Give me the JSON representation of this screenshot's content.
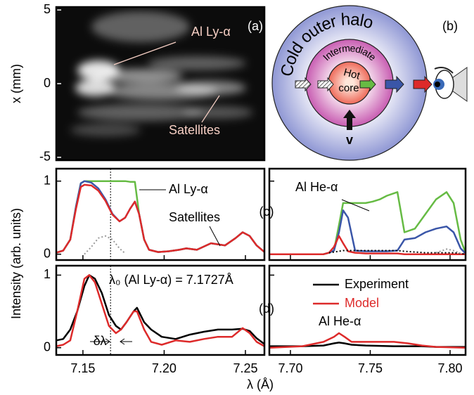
{
  "figure": {
    "xlabel": "λ (Å)",
    "ylabel": "Intensity (arb. units)"
  },
  "diagram": {
    "label": "(b)",
    "halo": "Cold outer halo",
    "intermediate": "Intermediate",
    "hot": "Hot",
    "core": "core",
    "velocity": "v"
  },
  "chart_data": [
    {
      "type": "image",
      "ylabel": "x (mm)",
      "ylim": [
        -5.2,
        5.2
      ],
      "yticks": [
        5,
        0,
        -5
      ],
      "annotations": [
        "Al Ly-α",
        "Satellites",
        "(a)"
      ]
    },
    {
      "type": "line",
      "xlim": [
        7.1336,
        7.2617
      ],
      "ylim": [
        -0.08,
        1.17
      ],
      "xticks": [
        7.15,
        7.2,
        7.25
      ],
      "xtick_labels": false,
      "yticks": [
        0,
        1
      ],
      "reference_line": 7.167,
      "x": [
        7.1336,
        7.1379,
        7.1422,
        7.1457,
        7.1487,
        7.1509,
        7.1552,
        7.1595,
        7.1639,
        7.1682,
        7.1725,
        7.176,
        7.179,
        7.182,
        7.1846,
        7.1877,
        7.1907,
        7.1963,
        7.2028,
        7.2093,
        7.2136,
        7.2201,
        7.2288,
        7.2374,
        7.2439,
        7.2483,
        7.2526,
        7.2569,
        7.2617
      ],
      "series": [
        {
          "color": "#66bb44",
          "values": [
            0.02,
            0.05,
            0.2,
            0.65,
            0.97,
            1.0,
            1.0,
            1.0,
            1.0,
            1.0,
            1.0,
            1.0,
            0.99,
            0.99,
            0.55,
            0.2,
            0.06,
            0.03,
            0.04,
            0.06,
            0.08,
            0.06,
            0.15,
            0.12,
            0.22,
            0.3,
            0.25,
            0.12,
            0.03
          ]
        },
        {
          "color": "#3a56a8",
          "values": [
            0.02,
            0.05,
            0.2,
            0.65,
            0.97,
            1.0,
            0.98,
            0.9,
            0.75,
            0.55,
            0.45,
            0.5,
            0.62,
            0.72,
            0.55,
            0.2,
            0.06,
            0.03,
            0.04,
            0.06,
            0.08,
            0.06,
            0.15,
            0.12,
            0.22,
            0.3,
            0.25,
            0.12,
            0.03
          ]
        },
        {
          "color": "#dd2a2a",
          "values": [
            0.02,
            0.05,
            0.2,
            0.62,
            0.92,
            0.95,
            0.94,
            0.87,
            0.73,
            0.54,
            0.45,
            0.5,
            0.62,
            0.72,
            0.55,
            0.2,
            0.06,
            0.03,
            0.04,
            0.06,
            0.08,
            0.06,
            0.15,
            0.12,
            0.22,
            0.3,
            0.25,
            0.12,
            0.03
          ]
        },
        {
          "color": "#999999",
          "dash": true,
          "values": [
            null,
            null,
            null,
            null,
            null,
            0,
            0.1,
            0.22,
            0.25,
            0.2,
            0.08,
            0.01,
            null,
            null,
            null,
            null,
            null,
            null,
            null,
            null,
            null,
            null,
            null,
            null,
            null,
            null,
            null,
            null,
            null
          ]
        }
      ],
      "annotations": [
        "Al Ly-α",
        "Satellites",
        "(c)"
      ]
    },
    {
      "type": "line",
      "xlim": [
        7.6868,
        7.8097
      ],
      "ylim": [
        -0.08,
        1.17
      ],
      "xticks": [
        7.7,
        7.75,
        7.8
      ],
      "xtick_labels": false,
      "yticks": [
        0,
        1
      ],
      "ytick_labels": false,
      "x": [
        7.6868,
        7.7075,
        7.7207,
        7.7242,
        7.7273,
        7.7304,
        7.733,
        7.7361,
        7.7405,
        7.7471,
        7.7515,
        7.7559,
        7.7604,
        7.767,
        7.7714,
        7.778,
        7.7846,
        7.7912,
        7.7978,
        7.8022,
        7.8066,
        7.8097
      ],
      "series": [
        {
          "color": "#66bb44",
          "values": [
            0,
            0,
            0,
            0.02,
            0.05,
            0.4,
            0.7,
            0.7,
            0.7,
            0.7,
            0.72,
            0.75,
            0.8,
            0.85,
            0.3,
            0.35,
            0.55,
            0.75,
            0.85,
            0.7,
            0.2,
            0.02
          ]
        },
        {
          "color": "#3a56a8",
          "values": [
            0,
            0,
            0,
            0.02,
            0.05,
            0.3,
            0.6,
            0.5,
            0.05,
            0.04,
            0.04,
            0.04,
            0.04,
            0.05,
            0.2,
            0.22,
            0.3,
            0.35,
            0.38,
            0.3,
            0.08,
            0.01
          ]
        },
        {
          "color": "#dd2a2a",
          "values": [
            0,
            0,
            0,
            0.02,
            0.1,
            0.25,
            0.15,
            0.04,
            0.02,
            0.01,
            0.01,
            0.01,
            0.01,
            0.01,
            0,
            0,
            0,
            0,
            0,
            0,
            0,
            0
          ]
        },
        {
          "color": "#000000",
          "dash": true,
          "values": [
            null,
            null,
            null,
            0.02,
            0.03,
            0.04,
            0.05,
            0.05,
            0.05,
            0.05,
            0.05,
            0.05,
            0.05,
            0.05,
            0.04,
            0.03,
            0.02,
            0.02,
            0.02,
            0.02,
            0.01,
            0
          ]
        },
        {
          "color": "#999999",
          "dash": true,
          "values": [
            null,
            null,
            null,
            null,
            null,
            null,
            null,
            null,
            null,
            null,
            null,
            null,
            null,
            null,
            null,
            null,
            null,
            0.02,
            0.07,
            0.05,
            0.01,
            null
          ]
        }
      ],
      "annotations": [
        "Al He-α"
      ]
    },
    {
      "type": "line",
      "xlim": [
        7.1336,
        7.2617
      ],
      "ylim": [
        -0.1,
        1.13
      ],
      "xticks": [
        7.15,
        {
          "value": 7.2,
          "label": "7.20"
        },
        7.25
      ],
      "yticks": [
        0,
        1
      ],
      "reference_line": 7.167,
      "x": [
        7.1336,
        7.1379,
        7.1422,
        7.1465,
        7.1509,
        7.1539,
        7.1574,
        7.1617,
        7.166,
        7.1703,
        7.1734,
        7.1768,
        7.1812,
        7.1833,
        7.1877,
        7.192,
        7.1985,
        7.2071,
        7.2158,
        7.2245,
        7.2331,
        7.2418,
        7.2483,
        7.2526,
        7.2569,
        7.2617
      ],
      "series": [
        {
          "color": "#000000",
          "values": [
            0.1,
            0.12,
            0.25,
            0.5,
            0.85,
            1.0,
            0.95,
            0.75,
            0.45,
            0.3,
            0.25,
            0.35,
            0.5,
            0.55,
            0.35,
            0.25,
            0.15,
            0.12,
            0.18,
            0.22,
            0.25,
            0.25,
            0.26,
            0.23,
            0.13,
            0.05
          ]
        },
        {
          "color": "#dd2a2a",
          "values": [
            0.02,
            0.04,
            0.1,
            0.5,
            0.95,
            1.0,
            0.9,
            0.6,
            0.3,
            0.2,
            0.25,
            0.35,
            0.5,
            0.5,
            0.25,
            0.08,
            0.04,
            0.1,
            0.08,
            0.12,
            0.15,
            0.15,
            0.27,
            0.2,
            0.08,
            0.02
          ]
        }
      ],
      "annotations": [
        "λ₀ (Al Ly-α) = 7.1727Å",
        "δλ",
        "(d)"
      ]
    },
    {
      "type": "line",
      "xlim": [
        7.6868,
        7.8097
      ],
      "ylim": [
        -0.1,
        1.13
      ],
      "xticks": [
        {
          "value": 7.7,
          "label": "7.70"
        },
        7.75,
        {
          "value": 7.8,
          "label": "7.80"
        }
      ],
      "yticks": [
        0,
        1
      ],
      "ytick_labels": false,
      "legend": "upper-left",
      "x": [
        7.6868,
        7.7075,
        7.7207,
        7.7273,
        7.7304,
        7.7339,
        7.7383,
        7.7471,
        7.7648,
        7.7736,
        7.7824,
        7.7912,
        7.8097
      ],
      "series": [
        {
          "name": "Experiment",
          "color": "#000000",
          "values": [
            0.02,
            0.02,
            0.03,
            0.06,
            0.07,
            0.06,
            0.04,
            0.03,
            0.02,
            0.02,
            0.02,
            0.01,
            0.01
          ]
        },
        {
          "name": "Model",
          "color": "#dd2a2a",
          "values": [
            0,
            0.02,
            0.08,
            0.15,
            0.2,
            0.15,
            0.08,
            0.08,
            0.08,
            0.06,
            0.03,
            0.01,
            0
          ]
        }
      ],
      "annotations": [
        "Al He-α"
      ]
    }
  ]
}
